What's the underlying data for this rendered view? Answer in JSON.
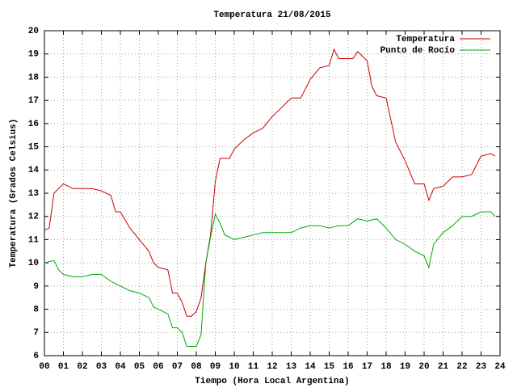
{
  "chart_data": {
    "type": "line",
    "title": "Temperatura 21/08/2015",
    "x_label": "Tiempo (Hora Local Argentina)",
    "y_label": "Temperatura (Grados Celsius)",
    "xlim": [
      0,
      24
    ],
    "ylim": [
      6,
      20
    ],
    "xticks": [
      {
        "value": 0,
        "label": "00"
      },
      {
        "value": 1,
        "label": "01"
      },
      {
        "value": 2,
        "label": "02"
      },
      {
        "value": 3,
        "label": "03"
      },
      {
        "value": 4,
        "label": "04"
      },
      {
        "value": 5,
        "label": "05"
      },
      {
        "value": 6,
        "label": "06"
      },
      {
        "value": 7,
        "label": "07"
      },
      {
        "value": 8,
        "label": "08"
      },
      {
        "value": 9,
        "label": "09"
      },
      10,
      11,
      12,
      13,
      14,
      15,
      16,
      17,
      18,
      19,
      20,
      21,
      22,
      23,
      24
    ],
    "yticks": [
      6,
      7,
      8,
      9,
      10,
      11,
      12,
      13,
      14,
      15,
      16,
      17,
      18,
      19,
      20
    ],
    "grid": true,
    "legend": "top-right",
    "series": [
      {
        "name": "Temperatura",
        "color": "#cc0000",
        "x": [
          0,
          0.25,
          0.5,
          0.75,
          1,
          1.5,
          2,
          2.5,
          3,
          3.5,
          3.75,
          4,
          4.5,
          5,
          5.5,
          5.75,
          6,
          6.5,
          6.75,
          7,
          7.25,
          7.5,
          7.75,
          8,
          8.25,
          8.5,
          8.75,
          9,
          9.25,
          9.5,
          9.75,
          10,
          10.5,
          11,
          11.5,
          12,
          12.5,
          13,
          13.5,
          14,
          14.5,
          15,
          15.25,
          15.5,
          16,
          16.25,
          16.5,
          17,
          17.25,
          17.5,
          18,
          18.5,
          19,
          19.5,
          20,
          20.25,
          20.5,
          21,
          21.5,
          22,
          22.5,
          23,
          23.5,
          23.75
        ],
        "values": [
          11.4,
          11.5,
          13.0,
          13.2,
          13.4,
          13.2,
          13.2,
          13.2,
          13.1,
          12.9,
          12.2,
          12.2,
          11.5,
          11.0,
          10.5,
          10.0,
          9.8,
          9.7,
          8.7,
          8.7,
          8.3,
          7.7,
          7.7,
          7.9,
          8.5,
          10.0,
          11.2,
          13.5,
          14.5,
          14.5,
          14.5,
          14.9,
          15.3,
          15.6,
          15.8,
          16.3,
          16.7,
          17.1,
          17.1,
          17.9,
          18.4,
          18.5,
          19.2,
          18.8,
          18.8,
          18.8,
          19.1,
          18.7,
          17.6,
          17.2,
          17.1,
          15.2,
          14.4,
          13.4,
          13.4,
          12.7,
          13.2,
          13.3,
          13.7,
          13.7,
          13.8,
          14.6,
          14.7,
          14.6
        ]
      },
      {
        "name": "Punto de Rocío",
        "color": "#00aa00",
        "x": [
          0,
          0.5,
          0.75,
          1,
          1.5,
          2,
          2.5,
          3,
          3.5,
          4,
          4.5,
          5,
          5.5,
          5.75,
          6,
          6.5,
          6.75,
          7,
          7.25,
          7.5,
          8,
          8.25,
          8.5,
          8.75,
          9,
          9.25,
          9.5,
          10,
          10.5,
          11,
          11.5,
          12,
          12.5,
          13,
          13.5,
          14,
          14.5,
          15,
          15.5,
          16,
          16.5,
          17,
          17.5,
          18,
          18.5,
          19,
          19.5,
          20,
          20.25,
          20.5,
          21,
          21.5,
          22,
          22.5,
          23,
          23.5,
          23.75
        ],
        "values": [
          10.0,
          10.1,
          9.7,
          9.5,
          9.4,
          9.4,
          9.5,
          9.5,
          9.2,
          9.0,
          8.8,
          8.7,
          8.5,
          8.1,
          8.0,
          7.8,
          7.2,
          7.2,
          7.0,
          6.4,
          6.4,
          6.9,
          10.0,
          11.1,
          12.1,
          11.7,
          11.2,
          11.0,
          11.1,
          11.2,
          11.3,
          11.3,
          11.3,
          11.3,
          11.5,
          11.6,
          11.6,
          11.5,
          11.6,
          11.6,
          11.9,
          11.8,
          11.9,
          11.5,
          11.0,
          10.8,
          10.5,
          10.3,
          9.8,
          10.8,
          11.3,
          11.6,
          12.0,
          12.0,
          12.2,
          12.2,
          12.0
        ]
      }
    ]
  }
}
